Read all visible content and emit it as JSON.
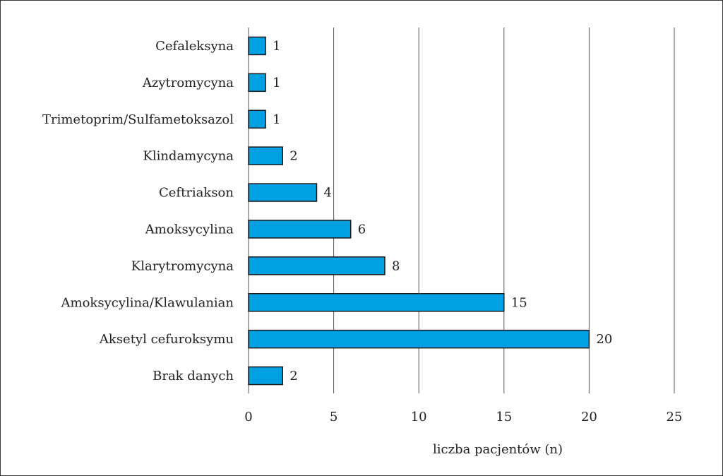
{
  "chart_data": {
    "type": "bar",
    "orientation": "horizontal",
    "categories": [
      "Cefaleksyna",
      "Azytromycyna",
      "Trimetoprim/Sulfametoksazol",
      "Klindamycyna",
      "Ceftriakson",
      "Amoksycylina",
      "Klarytromycyna",
      "Amoksycylina/Klawulanian",
      "Aksetyl cefuroksymu",
      "Brak danych"
    ],
    "values": [
      1,
      1,
      1,
      2,
      4,
      6,
      8,
      15,
      20,
      2
    ],
    "data_labels": [
      "1",
      "1",
      "1",
      "2",
      "4",
      "6",
      "8",
      "15",
      "20",
      "2"
    ],
    "xlabel": "liczba pacjentów (n)",
    "xlim": [
      0,
      25
    ],
    "x_ticks": [
      "0",
      "5",
      "10",
      "15",
      "20",
      "25"
    ],
    "grid": "vertical",
    "bar_color": "#00a0e3"
  }
}
